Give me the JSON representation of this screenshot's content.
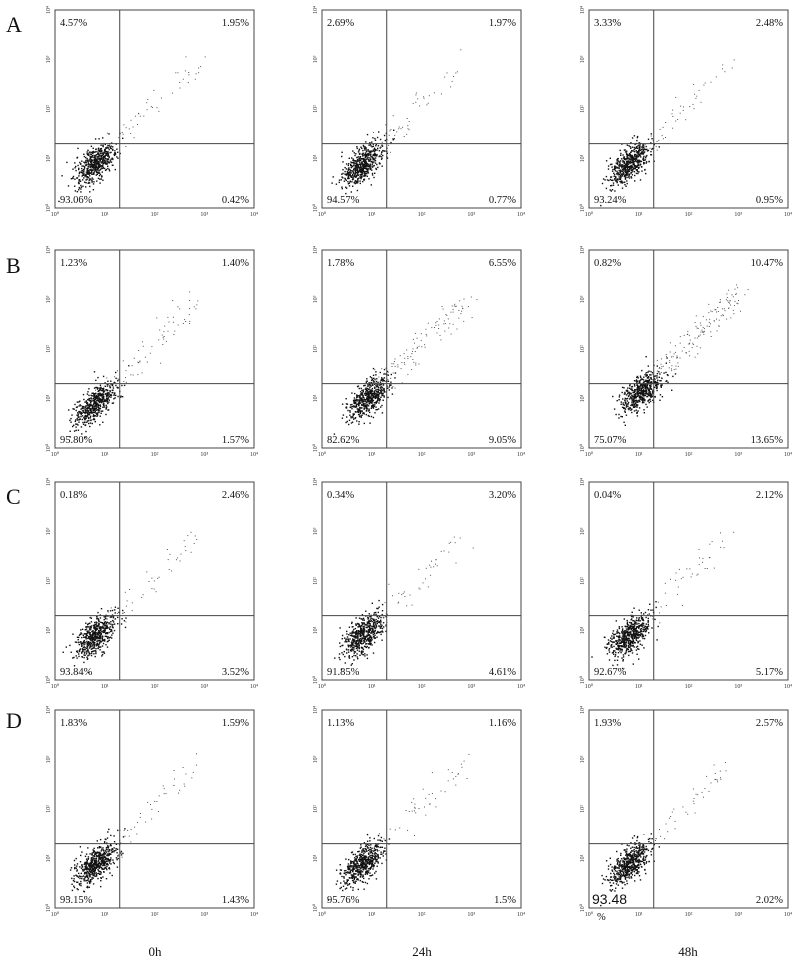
{
  "row_labels": [
    "A",
    "B",
    "C",
    "D"
  ],
  "col_labels": [
    "0h",
    "24h",
    "48h"
  ],
  "axis_ticks": [
    "10⁰",
    "10¹",
    "10²",
    "10³",
    "10⁴"
  ],
  "chart_data": {
    "type": "scatter",
    "description_of_layout": "4 x 3 grid of flow cytometry quadrant dot plots",
    "axis_scale": "log",
    "xlim": [
      1,
      10000
    ],
    "ylim": [
      1,
      10000
    ],
    "panels": [
      {
        "row": "A",
        "time": "0h",
        "UL": "4.57%",
        "UR": "1.95%",
        "LL": "93.06%",
        "LR": "0.42%",
        "gate_x": 20,
        "gate_y": 20
      },
      {
        "row": "A",
        "time": "24h",
        "UL": "2.69%",
        "UR": "1.97%",
        "LL": "94.57%",
        "LR": "0.77%",
        "gate_x": 20,
        "gate_y": 20
      },
      {
        "row": "A",
        "time": "48h",
        "UL": "3.33%",
        "UR": "2.48%",
        "LL": "93.24%",
        "LR": "0.95%",
        "gate_x": 20,
        "gate_y": 20
      },
      {
        "row": "B",
        "time": "0h",
        "UL": "1.23%",
        "UR": "1.40%",
        "LL": "95.80%",
        "LR": "1.57%",
        "gate_x": 20,
        "gate_y": 20
      },
      {
        "row": "B",
        "time": "24h",
        "UL": "1.78%",
        "UR": "6.55%",
        "LL": "82.62%",
        "LR": "9.05%",
        "gate_x": 20,
        "gate_y": 20
      },
      {
        "row": "B",
        "time": "48h",
        "UL": "0.82%",
        "UR": "10.47%",
        "LL": "75.07%",
        "LR": "13.65%",
        "gate_x": 20,
        "gate_y": 20
      },
      {
        "row": "C",
        "time": "0h",
        "UL": "0.18%",
        "UR": "2.46%",
        "LL": "93.84%",
        "LR": "3.52%",
        "gate_x": 20,
        "gate_y": 20
      },
      {
        "row": "C",
        "time": "24h",
        "UL": "0.34%",
        "UR": "3.20%",
        "LL": "91.85%",
        "LR": "4.61%",
        "gate_x": 20,
        "gate_y": 20
      },
      {
        "row": "C",
        "time": "48h",
        "UL": "0.04%",
        "UR": "2.12%",
        "LL": "92.67%",
        "LR": "5.17%",
        "gate_x": 20,
        "gate_y": 20
      },
      {
        "row": "D",
        "time": "0h",
        "UL": "1.83%",
        "UR": "1.59%",
        "LL": "95.15%",
        "LR": "1.43%",
        "gate_x": 20,
        "gate_y": 20
      },
      {
        "row": "D",
        "time": "24h",
        "UL": "1.13%",
        "UR": "1.16%",
        "LL": "95.76%",
        "LR": "1.5%",
        "gate_x": 20,
        "gate_y": 20
      },
      {
        "row": "D",
        "time": "48h",
        "UL": "1.93%",
        "UR": "2.57%",
        "LL": "93.48 %",
        "LR": "2.02%",
        "gate_x": 20,
        "gate_y": 20,
        "LL_style": "large"
      }
    ]
  }
}
